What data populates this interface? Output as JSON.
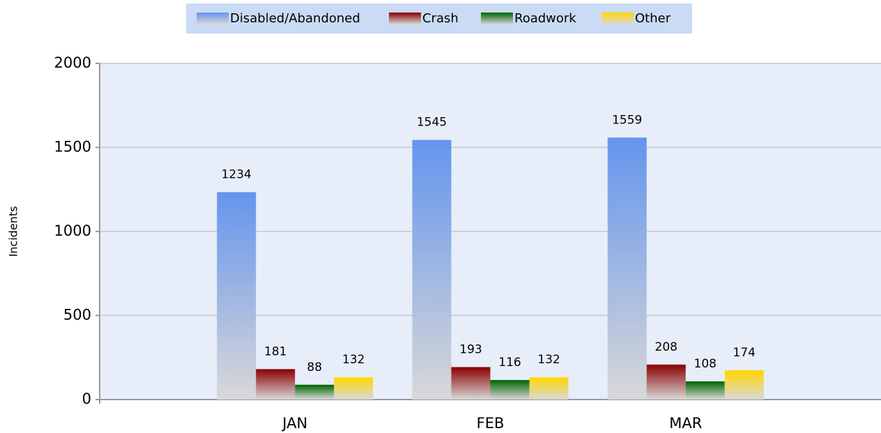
{
  "chart_data": {
    "type": "bar",
    "y_label": "Incidents",
    "categories": [
      "JAN",
      "FEB",
      "MAR"
    ],
    "series": [
      {
        "name": "Disabled/Abandoned",
        "color": "#6495ed",
        "values": [
          1234,
          1545,
          1559
        ]
      },
      {
        "name": "Crash",
        "color": "#8b0000",
        "values": [
          181,
          193,
          208
        ]
      },
      {
        "name": "Roadwork",
        "color": "#006400",
        "values": [
          88,
          116,
          108
        ]
      },
      {
        "name": "Other",
        "color": "#ffd700",
        "values": [
          132,
          132,
          174
        ]
      }
    ],
    "ylim": [
      0,
      2000
    ],
    "yticks": [
      0,
      500,
      1000,
      1500,
      2000
    ],
    "grid": true,
    "legend": "top"
  }
}
